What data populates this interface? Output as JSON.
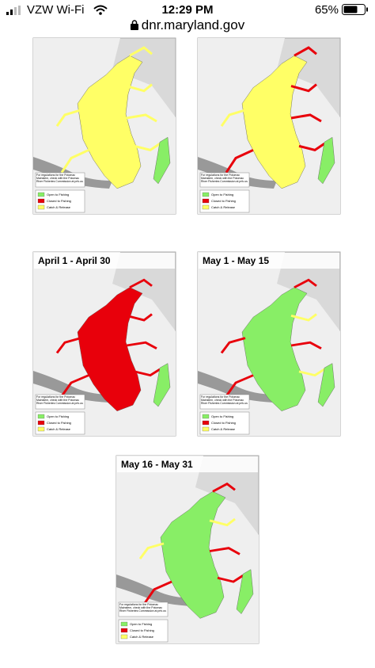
{
  "status_bar": {
    "carrier": "VZW Wi-Fi",
    "time": "12:29 PM",
    "battery": "65%"
  },
  "address_bar": {
    "url": "dnr.maryland.gov"
  },
  "maps": [
    {
      "legend": [
        "Open to Fishing",
        "Closed to Fishing",
        "Catch & Release"
      ],
      "note": "For regulations for the Potomac Mainstem, check with the Potomac River Fisheries Commission at prfc.us"
    },
    {
      "legend": [
        "Open to Fishing",
        "Closed to Fishing",
        "Catch & Release"
      ],
      "note": "For regulations for the Potomac Mainstem, check with the Potomac River Fisheries Commission at prfc.us"
    },
    {
      "title": "April 1 - April 30",
      "legend": [
        "Open to Fishing",
        "Closed to Fishing",
        "Catch & Release"
      ],
      "note": "For regulations for the Potomac Mainstem, check with the Potomac River Fisheries Commission at prfc.us"
    },
    {
      "title": "May 1 - May 15",
      "legend": [
        "Open to Fishing",
        "Closed to Fishing",
        "Catch & Release"
      ],
      "note": "For regulations for the Potomac Mainstem, check with the Potomac River Fisheries Commission at prfc.us"
    },
    {
      "title": "May 16 - May 31",
      "legend": [
        "Open to Fishing",
        "Closed to Fishing",
        "Catch & Release"
      ],
      "note": "For regulations for the Potomac Mainstem, check with the Potomac River Fisheries Commission at prfc.us"
    }
  ]
}
